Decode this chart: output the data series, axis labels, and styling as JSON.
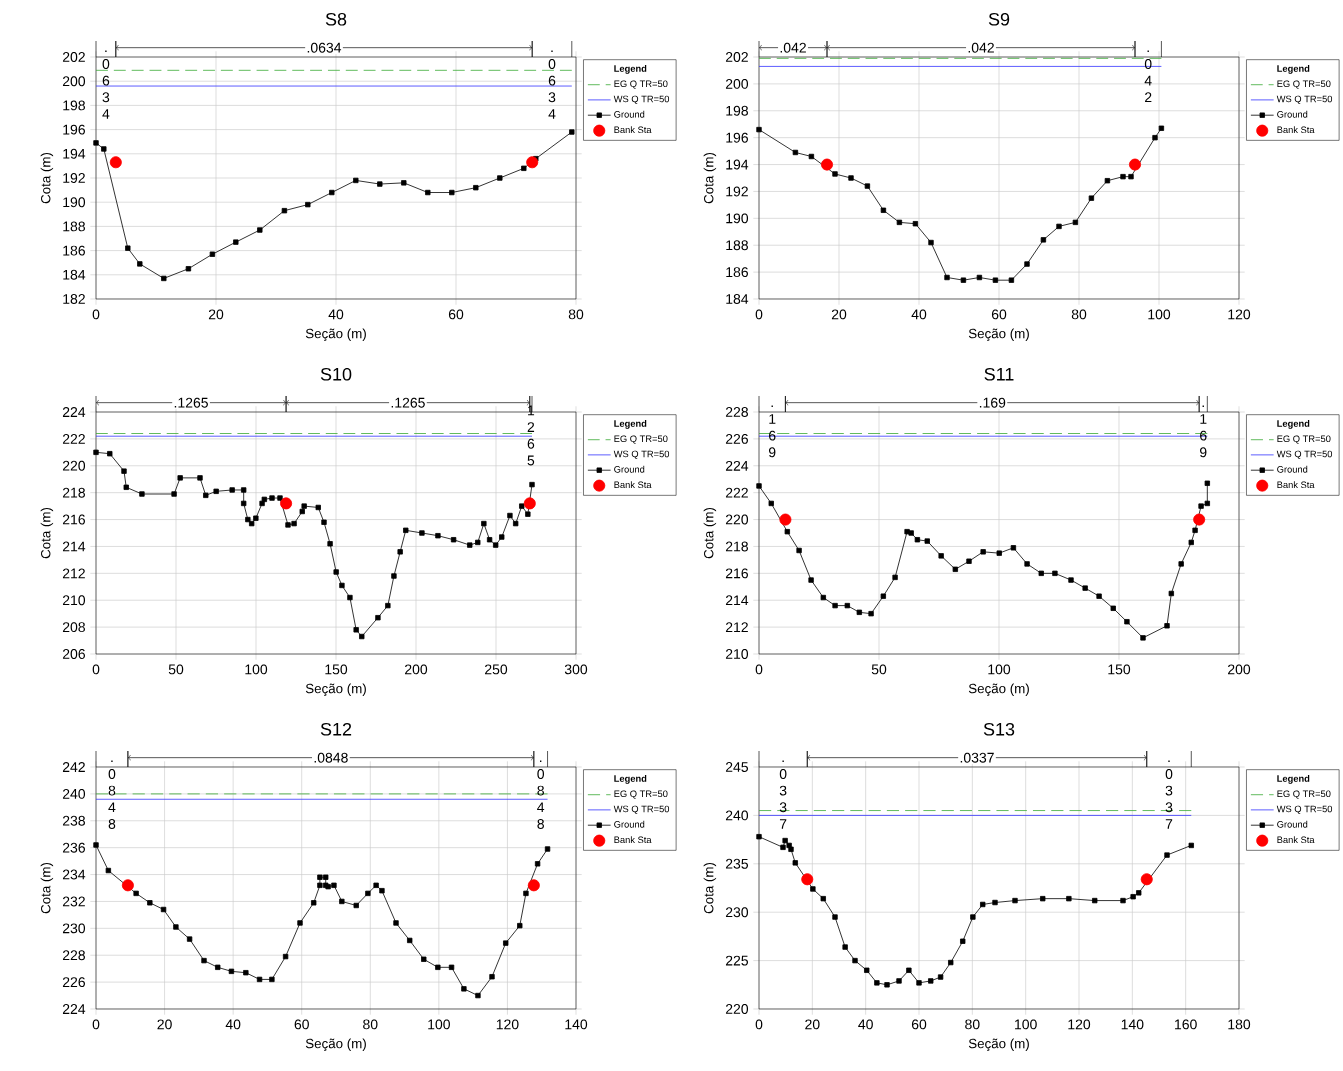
{
  "chart_data": [
    {
      "type": "line",
      "title": "S8",
      "xlabel": "Seção (m)",
      "ylabel": "Cota (m)",
      "xlim": [
        0,
        80
      ],
      "ylim": [
        182,
        202
      ],
      "xticks": [
        0,
        20,
        40,
        60,
        80
      ],
      "yticks": [
        182,
        184,
        186,
        188,
        190,
        192,
        194,
        196,
        198,
        200,
        202
      ],
      "grid": true,
      "legend": "right",
      "legend_title": "Legend",
      "annotations": [
        ". 0 6 3 4",
        ".0634",
        ". 0 6 3 4"
      ],
      "series": [
        {
          "name": "EG Q TR=50",
          "color": "#3aaa35",
          "line_style": "dashed",
          "marker": "none",
          "x": [
            0,
            79.3
          ],
          "values": [
            200.9,
            200.9
          ]
        },
        {
          "name": "WS Q TR=50",
          "color": "#3333ff",
          "line_style": "solid",
          "marker": "none",
          "x": [
            0,
            79.3
          ],
          "values": [
            199.6,
            199.6
          ]
        },
        {
          "name": "Ground",
          "color": "#000000",
          "line_style": "solid",
          "marker": "square",
          "x": [
            0,
            1.3,
            5.3,
            7.3,
            11.3,
            15.4,
            19.4,
            23.3,
            27.3,
            31.4,
            35.3,
            39.3,
            43.3,
            47.3,
            51.3,
            55.3,
            59.3,
            63.3,
            67.3,
            71.3,
            73.3,
            79.3
          ],
          "values": [
            194.9,
            194.4,
            186.2,
            184.9,
            183.7,
            184.5,
            185.7,
            186.7,
            187.7,
            189.3,
            189.8,
            190.8,
            191.8,
            191.5,
            191.6,
            190.8,
            190.8,
            191.2,
            192.0,
            192.8,
            193.6,
            195.8
          ]
        },
        {
          "name": "Bank Sta",
          "type": "scatter",
          "color": "#ff0000",
          "marker": "circle",
          "x": [
            3.3,
            72.7
          ],
          "values": [
            193.3,
            193.3
          ]
        }
      ]
    },
    {
      "type": "line",
      "title": "S9",
      "xlabel": "Seção (m)",
      "ylabel": "Cota (m)",
      "xlim": [
        0,
        120
      ],
      "ylim": [
        184,
        202
      ],
      "xticks": [
        0,
        20,
        40,
        60,
        80,
        100,
        120
      ],
      "yticks": [
        184,
        186,
        188,
        190,
        192,
        194,
        196,
        198,
        200,
        202
      ],
      "grid": true,
      "legend": "right",
      "legend_title": "Legend",
      "annotations": [
        ".042",
        ".042",
        ". 0 4 2"
      ],
      "series": [
        {
          "name": "EG Q TR=50",
          "color": "#3aaa35",
          "line_style": "dashed",
          "marker": "none",
          "x": [
            0,
            100.6
          ],
          "values": [
            201.9,
            201.9
          ]
        },
        {
          "name": "WS Q TR=50",
          "color": "#3333ff",
          "line_style": "solid",
          "marker": "none",
          "x": [
            0,
            100.6
          ],
          "values": [
            201.3,
            201.3
          ]
        },
        {
          "name": "Ground",
          "color": "#000000",
          "line_style": "solid",
          "marker": "square",
          "x": [
            0,
            9.1,
            13.1,
            19.0,
            23.0,
            27.1,
            31.1,
            35.1,
            39.1,
            43.0,
            47.0,
            51.1,
            55.1,
            59.1,
            63.1,
            67.0,
            71.1,
            75.0,
            79.1,
            83.1,
            87.1,
            91.0,
            93.0,
            99.0,
            100.6
          ],
          "values": [
            196.6,
            194.9,
            194.6,
            193.3,
            193.0,
            192.4,
            190.6,
            189.7,
            189.6,
            188.2,
            185.6,
            185.4,
            185.6,
            185.4,
            185.4,
            186.6,
            188.4,
            189.4,
            189.7,
            191.5,
            192.8,
            193.1,
            193.1,
            196.0,
            196.7
          ]
        },
        {
          "name": "Bank Sta",
          "type": "scatter",
          "color": "#ff0000",
          "marker": "circle",
          "x": [
            17.0,
            94.0
          ],
          "values": [
            194.0,
            194.0
          ]
        }
      ]
    },
    {
      "type": "line",
      "title": "S10",
      "xlabel": "Seção (m)",
      "ylabel": "Cota (m)",
      "xlim": [
        0,
        300
      ],
      "ylim": [
        206,
        224
      ],
      "xticks": [
        0,
        50,
        100,
        150,
        200,
        250,
        300
      ],
      "yticks": [
        206,
        208,
        210,
        212,
        214,
        216,
        218,
        220,
        222,
        224
      ],
      "grid": true,
      "legend": "right",
      "legend_title": "Legend",
      "annotations": [
        ".1265",
        ".1265",
        "1 2 6 5"
      ],
      "series": [
        {
          "name": "EG Q TR=50",
          "color": "#3aaa35",
          "line_style": "dashed",
          "marker": "none",
          "x": [
            0,
            272.5
          ],
          "values": [
            222.4,
            222.4
          ]
        },
        {
          "name": "WS Q TR=50",
          "color": "#3333ff",
          "line_style": "solid",
          "marker": "none",
          "x": [
            0,
            272.5
          ],
          "values": [
            222.2,
            222.2
          ]
        },
        {
          "name": "Ground",
          "color": "#000000",
          "line_style": "solid",
          "marker": "square",
          "x": [
            0,
            8.6,
            17.5,
            18.9,
            28.7,
            48.8,
            52.6,
            65.0,
            68.6,
            75.1,
            85.1,
            92.3,
            92.3,
            94.9,
            97.3,
            99.9,
            103.8,
            105.2,
            110.0,
            115.0,
            120.0,
            123.8,
            128.9,
            130.1,
            138.9,
            142.5,
            146.3,
            150.1,
            153.7,
            158.7,
            162.6,
            166.1,
            176.2,
            182.4,
            186.2,
            190.1,
            193.6,
            203.7,
            213.7,
            223.5,
            233.6,
            238.6,
            242.4,
            246.0,
            249.8,
            253.6,
            258.7,
            262.3,
            266.1,
            269.9,
            272.5
          ],
          "values": [
            221.0,
            220.9,
            219.6,
            218.4,
            217.9,
            217.9,
            219.1,
            219.1,
            217.8,
            218.1,
            218.2,
            218.2,
            217.2,
            216.0,
            215.7,
            216.1,
            217.2,
            217.5,
            217.6,
            217.6,
            215.6,
            215.7,
            216.6,
            217.0,
            216.9,
            215.8,
            214.2,
            212.1,
            211.1,
            210.2,
            207.8,
            207.3,
            208.7,
            209.6,
            211.8,
            213.6,
            215.2,
            215.0,
            214.8,
            214.5,
            214.1,
            214.3,
            215.7,
            214.5,
            214.1,
            214.7,
            216.3,
            215.7,
            217.0,
            216.4,
            218.6
          ]
        },
        {
          "name": "Bank Sta",
          "type": "scatter",
          "color": "#ff0000",
          "marker": "circle",
          "x": [
            118.8,
            271.1
          ],
          "values": [
            217.2,
            217.2
          ]
        }
      ]
    },
    {
      "type": "line",
      "title": "S11",
      "xlabel": "Seção (m)",
      "ylabel": "Cota (m)",
      "xlim": [
        0,
        200
      ],
      "ylim": [
        210,
        228
      ],
      "xticks": [
        0,
        50,
        100,
        150,
        200
      ],
      "yticks": [
        210,
        212,
        214,
        216,
        218,
        220,
        222,
        224,
        226,
        228
      ],
      "grid": true,
      "legend": "right",
      "legend_title": "Legend",
      "annotations": [
        ". 1 6 9",
        ".169",
        ". 1 6 9"
      ],
      "series": [
        {
          "name": "EG Q TR=50",
          "color": "#3aaa35",
          "line_style": "dashed",
          "marker": "none",
          "x": [
            0,
            186.8
          ],
          "values": [
            226.4,
            226.4
          ]
        },
        {
          "name": "WS Q TR=50",
          "color": "#3333ff",
          "line_style": "solid",
          "marker": "none",
          "x": [
            0,
            186.8
          ],
          "values": [
            226.2,
            226.2
          ]
        },
        {
          "name": "Ground",
          "color": "#000000",
          "line_style": "solid",
          "marker": "square",
          "x": [
            0,
            5.1,
            11.8,
            16.7,
            21.7,
            26.8,
            31.7,
            36.8,
            41.8,
            46.7,
            51.8,
            56.7,
            61.7,
            63.4,
            66.0,
            70.1,
            75.9,
            81.8,
            87.5,
            93.4,
            100.1,
            106.0,
            111.7,
            117.6,
            123.3,
            130.0,
            135.9,
            141.7,
            147.6,
            153.3,
            160.0,
            170.0,
            171.8,
            175.9,
            180.1,
            181.7,
            184.2,
            186.8,
            186.8
          ],
          "values": [
            222.5,
            221.2,
            219.1,
            217.7,
            215.5,
            214.2,
            213.6,
            213.6,
            213.1,
            213.0,
            214.3,
            215.7,
            219.1,
            219.0,
            218.5,
            218.4,
            217.3,
            216.3,
            216.9,
            217.6,
            217.5,
            217.9,
            216.7,
            216.0,
            216.0,
            215.5,
            214.9,
            214.3,
            213.4,
            212.4,
            211.2,
            212.1,
            214.5,
            216.7,
            218.3,
            219.2,
            221.0,
            221.2,
            222.7
          ]
        },
        {
          "name": "Bank Sta",
          "type": "scatter",
          "color": "#ff0000",
          "marker": "circle",
          "x": [
            11.0,
            183.4
          ],
          "values": [
            220.0,
            220.0
          ]
        }
      ]
    },
    {
      "type": "line",
      "title": "S12",
      "xlabel": "Seção (m)",
      "ylabel": "Cota (m)",
      "xlim": [
        0,
        140
      ],
      "ylim": [
        224,
        242
      ],
      "xticks": [
        0,
        20,
        40,
        60,
        80,
        100,
        120,
        140
      ],
      "yticks": [
        224,
        226,
        228,
        230,
        232,
        234,
        236,
        238,
        240,
        242
      ],
      "grid": true,
      "legend": "right",
      "legend_title": "Legend",
      "annotations": [
        ". 0 8 4 8",
        ".0848",
        ". 0 8 4 8"
      ],
      "series": [
        {
          "name": "EG Q TR=50",
          "color": "#3aaa35",
          "line_style": "dashed",
          "marker": "none",
          "x": [
            0,
            131.7
          ],
          "values": [
            240.0,
            240.0
          ]
        },
        {
          "name": "WS Q TR=50",
          "color": "#3333ff",
          "line_style": "solid",
          "marker": "none",
          "x": [
            0,
            131.7
          ],
          "values": [
            239.6,
            239.6
          ]
        },
        {
          "name": "Ground",
          "color": "#000000",
          "line_style": "solid",
          "marker": "square",
          "x": [
            0,
            3.6,
            11.7,
            15.7,
            19.7,
            23.3,
            27.3,
            31.5,
            35.5,
            39.5,
            43.7,
            47.7,
            51.3,
            55.3,
            59.5,
            63.5,
            65.3,
            65.3,
            67.0,
            67.0,
            67.7,
            69.4,
            71.7,
            75.9,
            79.3,
            81.7,
            83.4,
            87.5,
            91.5,
            95.6,
            99.7,
            103.7,
            107.3,
            111.4,
            115.5,
            119.5,
            123.6,
            125.4,
            128.8,
            131.7
          ],
          "values": [
            236.2,
            234.3,
            232.6,
            231.9,
            231.4,
            230.1,
            229.2,
            227.6,
            227.1,
            226.8,
            226.7,
            226.2,
            226.2,
            227.9,
            230.4,
            231.9,
            233.2,
            233.8,
            233.8,
            233.2,
            233.1,
            233.2,
            232.0,
            231.7,
            232.6,
            233.2,
            232.8,
            230.4,
            229.1,
            227.7,
            227.1,
            227.1,
            225.5,
            225.0,
            226.4,
            228.9,
            230.2,
            232.6,
            234.8,
            235.9
          ]
        },
        {
          "name": "Bank Sta",
          "type": "scatter",
          "color": "#ff0000",
          "marker": "circle",
          "x": [
            9.3,
            127.7
          ],
          "values": [
            233.2,
            233.2
          ]
        }
      ]
    },
    {
      "type": "line",
      "title": "S13",
      "xlabel": "Seção (m)",
      "ylabel": "Cota (m)",
      "xlim": [
        0,
        180
      ],
      "ylim": [
        220,
        245
      ],
      "xticks": [
        0,
        20,
        40,
        60,
        80,
        100,
        120,
        140,
        160,
        180
      ],
      "yticks": [
        220,
        225,
        230,
        235,
        240,
        245
      ],
      "grid": true,
      "legend": "right",
      "legend_title": "Legend",
      "annotations": [
        ". 0 3 3 7",
        ".0337",
        ". 0 3 3 7"
      ],
      "series": [
        {
          "name": "EG Q TR=50",
          "color": "#3aaa35",
          "line_style": "dashed",
          "marker": "none",
          "x": [
            0,
            162.1
          ],
          "values": [
            240.5,
            240.5
          ]
        },
        {
          "name": "WS Q TR=50",
          "color": "#3333ff",
          "line_style": "solid",
          "marker": "none",
          "x": [
            0,
            162.1
          ],
          "values": [
            240.0,
            240.0
          ]
        },
        {
          "name": "Ground",
          "color": "#000000",
          "line_style": "solid",
          "marker": "square",
          "x": [
            0,
            9.0,
            9.8,
            11.3,
            12.0,
            13.6,
            20.2,
            24.1,
            28.5,
            32.3,
            36.0,
            40.4,
            44.2,
            48.0,
            52.5,
            56.2,
            60.0,
            64.4,
            68.1,
            71.9,
            76.4,
            80.2,
            83.9,
            88.5,
            96.0,
            106.4,
            116.2,
            125.9,
            136.5,
            140.3,
            142.4,
            153.0,
            162.1
          ],
          "values": [
            237.8,
            236.7,
            237.4,
            236.9,
            236.5,
            235.1,
            232.4,
            231.4,
            229.5,
            226.4,
            225.0,
            224.0,
            222.7,
            222.5,
            222.9,
            224.0,
            222.7,
            222.9,
            223.3,
            224.8,
            227.0,
            229.5,
            230.8,
            231.0,
            231.2,
            231.4,
            231.4,
            231.2,
            231.2,
            231.6,
            232.0,
            235.9,
            236.9
          ]
        },
        {
          "name": "Bank Sta",
          "type": "scatter",
          "color": "#ff0000",
          "marker": "circle",
          "x": [
            18.1,
            145.4
          ],
          "values": [
            233.4,
            233.4
          ]
        }
      ]
    }
  ]
}
